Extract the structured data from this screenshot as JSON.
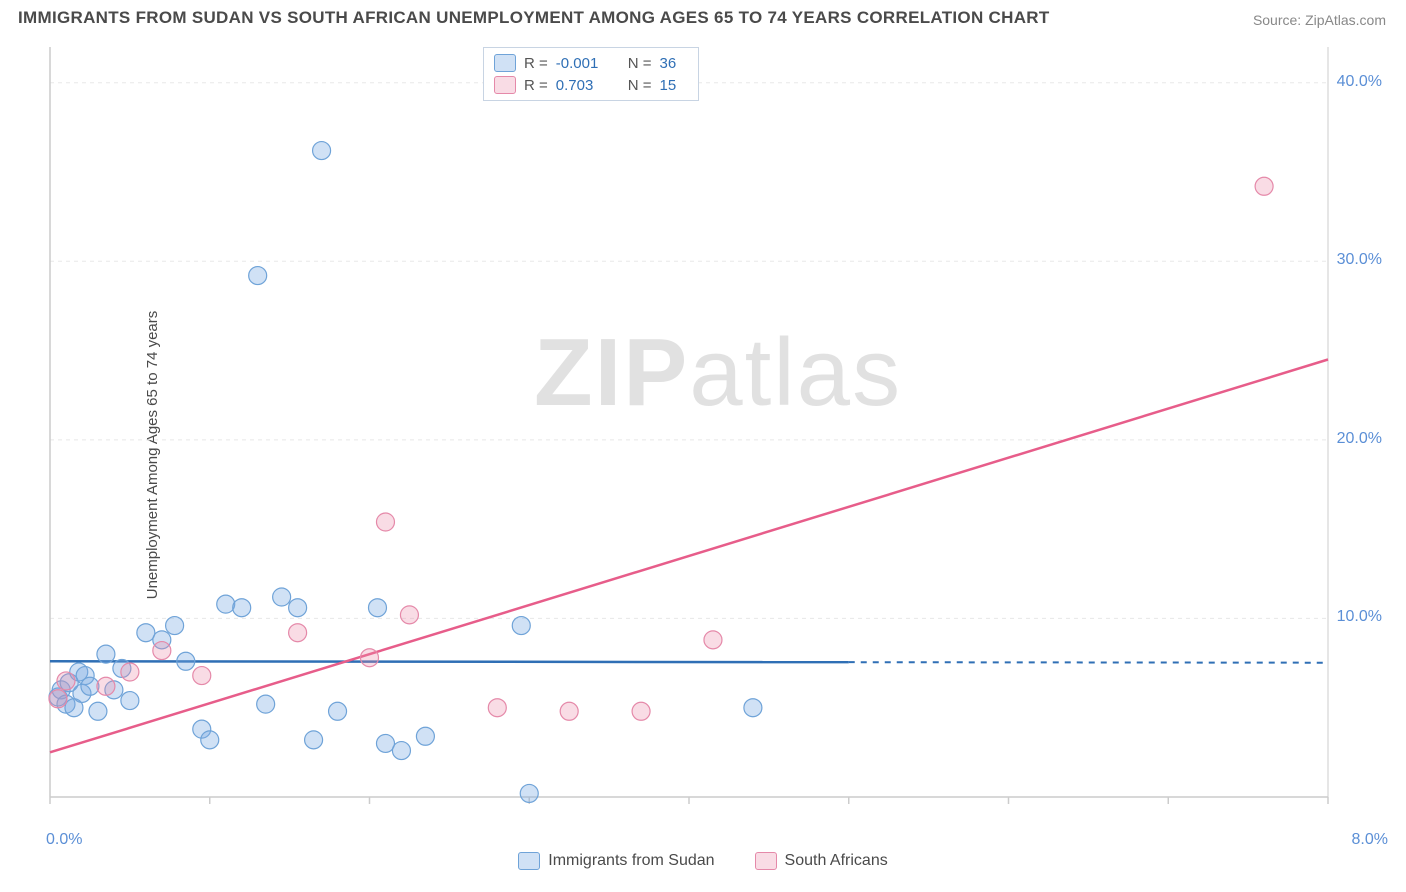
{
  "title": "IMMIGRANTS FROM SUDAN VS SOUTH AFRICAN UNEMPLOYMENT AMONG AGES 65 TO 74 YEARS CORRELATION CHART",
  "source_label": "Source: ",
  "source_name": "ZipAtlas.com",
  "y_axis_label": "Unemployment Among Ages 65 to 74 years",
  "watermark_zip": "ZIP",
  "watermark_atlas": "atlas",
  "chart": {
    "type": "scatter",
    "xlim": [
      0.0,
      8.0
    ],
    "ylim": [
      0.0,
      42.0
    ],
    "x_ticks": [
      0.0,
      1.0,
      2.0,
      3.0,
      4.0,
      5.0,
      6.0,
      7.0,
      8.0
    ],
    "x_tick_labels": {
      "0": "0.0%",
      "8": "8.0%"
    },
    "y_ticks": [
      10.0,
      20.0,
      30.0,
      40.0
    ],
    "y_tick_labels": [
      "10.0%",
      "20.0%",
      "30.0%",
      "40.0%"
    ],
    "grid_color": "#e8e8e8",
    "axis_color": "#cccccc",
    "background_color": "#ffffff",
    "marker_radius": 9,
    "marker_stroke_width": 1.2,
    "series": [
      {
        "name": "Immigrants from Sudan",
        "fill_color": "rgba(120,170,225,0.35)",
        "stroke_color": "#6fa3d8",
        "line_color": "#2f6fb5",
        "R": "-0.001",
        "N": "36",
        "data": [
          [
            0.05,
            5.6
          ],
          [
            0.07,
            6.0
          ],
          [
            0.1,
            5.2
          ],
          [
            0.12,
            6.4
          ],
          [
            0.15,
            5.0
          ],
          [
            0.18,
            7.0
          ],
          [
            0.2,
            5.8
          ],
          [
            0.22,
            6.8
          ],
          [
            0.25,
            6.2
          ],
          [
            0.3,
            4.8
          ],
          [
            0.35,
            8.0
          ],
          [
            0.4,
            6.0
          ],
          [
            0.45,
            7.2
          ],
          [
            0.5,
            5.4
          ],
          [
            0.6,
            9.2
          ],
          [
            0.7,
            8.8
          ],
          [
            0.78,
            9.6
          ],
          [
            0.85,
            7.6
          ],
          [
            0.95,
            3.8
          ],
          [
            1.0,
            3.2
          ],
          [
            1.1,
            10.8
          ],
          [
            1.2,
            10.6
          ],
          [
            1.3,
            29.2
          ],
          [
            1.35,
            5.2
          ],
          [
            1.45,
            11.2
          ],
          [
            1.55,
            10.6
          ],
          [
            1.65,
            3.2
          ],
          [
            1.7,
            36.2
          ],
          [
            1.8,
            4.8
          ],
          [
            2.05,
            10.6
          ],
          [
            2.1,
            3.0
          ],
          [
            2.2,
            2.6
          ],
          [
            2.35,
            3.4
          ],
          [
            2.95,
            9.6
          ],
          [
            3.0,
            0.2
          ],
          [
            4.4,
            5.0
          ]
        ],
        "regression": {
          "x1": 0.0,
          "y1": 7.6,
          "x2": 5.0,
          "y2": 7.55,
          "dash_to_x": 8.0
        }
      },
      {
        "name": "South Africans",
        "fill_color": "rgba(235,140,170,0.30)",
        "stroke_color": "#e589a9",
        "line_color": "#e75d8a",
        "R": "0.703",
        "N": "15",
        "data": [
          [
            0.05,
            5.5
          ],
          [
            0.1,
            6.5
          ],
          [
            0.35,
            6.2
          ],
          [
            0.5,
            7.0
          ],
          [
            0.7,
            8.2
          ],
          [
            0.95,
            6.8
          ],
          [
            1.55,
            9.2
          ],
          [
            2.0,
            7.8
          ],
          [
            2.1,
            15.4
          ],
          [
            2.25,
            10.2
          ],
          [
            2.8,
            5.0
          ],
          [
            3.25,
            4.8
          ],
          [
            3.7,
            4.8
          ],
          [
            4.15,
            8.8
          ],
          [
            7.6,
            34.2
          ]
        ],
        "regression": {
          "x1": 0.0,
          "y1": 2.5,
          "x2": 8.0,
          "y2": 24.5
        }
      }
    ],
    "correlation_legend": {
      "R_label": "R =",
      "N_label": "N ="
    },
    "bottom_legend": {
      "series1": "Immigrants from Sudan",
      "series2": "South Africans"
    }
  }
}
